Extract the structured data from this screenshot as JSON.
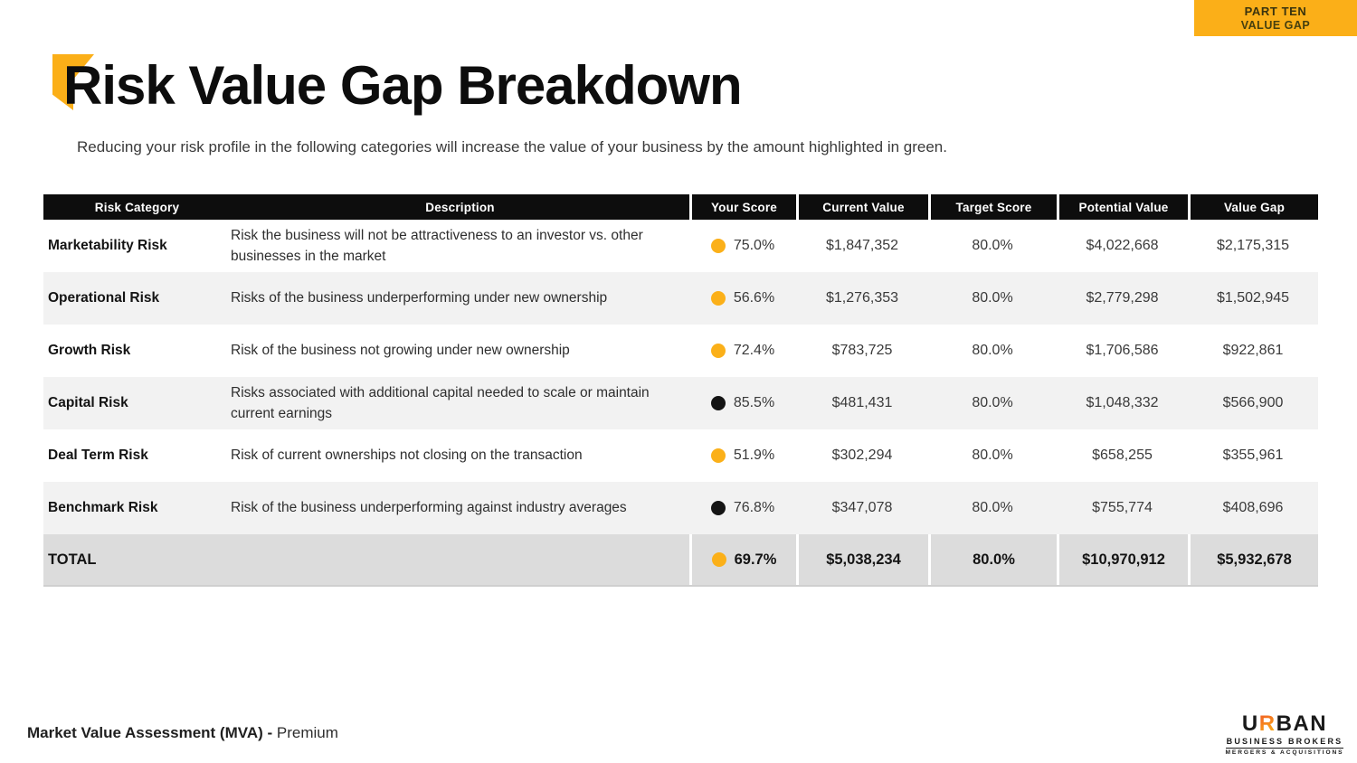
{
  "badge": {
    "line1": "PART TEN",
    "line2": "VALUE GAP"
  },
  "header": {
    "title": "Risk Value Gap Breakdown",
    "subtitle": "Reducing your risk profile in the following categories will increase the value of your business by the amount highlighted in green."
  },
  "colors": {
    "accent_yellow": "#FBAF18",
    "table_header_black": "#0D0D0D",
    "stripe_gray": "#F2F2F2",
    "total_gray": "#DCDCDC",
    "dot_yellow": "#FBB019",
    "dot_black": "#141414"
  },
  "table": {
    "columns": {
      "c1": "Risk Category",
      "c2": "Description",
      "c3": "Your Score",
      "c4": "Current Value",
      "c5": "Target Score",
      "c6": "Potential Value",
      "c7": "Value Gap"
    },
    "rows": [
      {
        "category": "Marketability Risk",
        "description": "Risk the business will not be attractiveness to an investor vs. other businesses in the market",
        "dot": "yellow",
        "your_score": "75.0%",
        "current_value": "$1,847,352",
        "target_score": "80.0%",
        "potential_value": "$4,022,668",
        "value_gap": "$2,175,315"
      },
      {
        "category": "Operational Risk",
        "description": "Risks of the business underperforming under new ownership",
        "dot": "yellow",
        "your_score": "56.6%",
        "current_value": "$1,276,353",
        "target_score": "80.0%",
        "potential_value": "$2,779,298",
        "value_gap": "$1,502,945"
      },
      {
        "category": "Growth Risk",
        "description": "Risk of the business not growing under new ownership",
        "dot": "yellow",
        "your_score": "72.4%",
        "current_value": "$783,725",
        "target_score": "80.0%",
        "potential_value": "$1,706,586",
        "value_gap": "$922,861"
      },
      {
        "category": "Capital Risk",
        "description": "Risks associated with additional capital needed to scale or maintain current earnings",
        "dot": "black",
        "your_score": "85.5%",
        "current_value": "$481,431",
        "target_score": "80.0%",
        "potential_value": "$1,048,332",
        "value_gap": "$566,900"
      },
      {
        "category": "Deal Term Risk",
        "description": "Risk of current ownerships not closing on the transaction",
        "dot": "yellow",
        "your_score": "51.9%",
        "current_value": "$302,294",
        "target_score": "80.0%",
        "potential_value": "$658,255",
        "value_gap": "$355,961"
      },
      {
        "category": "Benchmark Risk",
        "description": "Risk of the business underperforming against industry averages",
        "dot": "black",
        "your_score": "76.8%",
        "current_value": "$347,078",
        "target_score": "80.0%",
        "potential_value": "$755,774",
        "value_gap": "$408,696"
      }
    ],
    "total": {
      "label": "TOTAL",
      "dot": "yellow",
      "your_score": "69.7%",
      "current_value": "$5,038,234",
      "target_score": "80.0%",
      "potential_value": "$10,970,912",
      "value_gap": "$5,932,678"
    }
  },
  "footer": {
    "label_bold": "Market Value Assessment (MVA) -",
    "label_light": "Premium"
  },
  "logo": {
    "name": "URBAN",
    "name_u": "U",
    "name_r": "R",
    "name_rest": "BAN",
    "line2": "BUSINESS BROKERS",
    "line3": "MERGERS & ACQUISITIONS"
  }
}
